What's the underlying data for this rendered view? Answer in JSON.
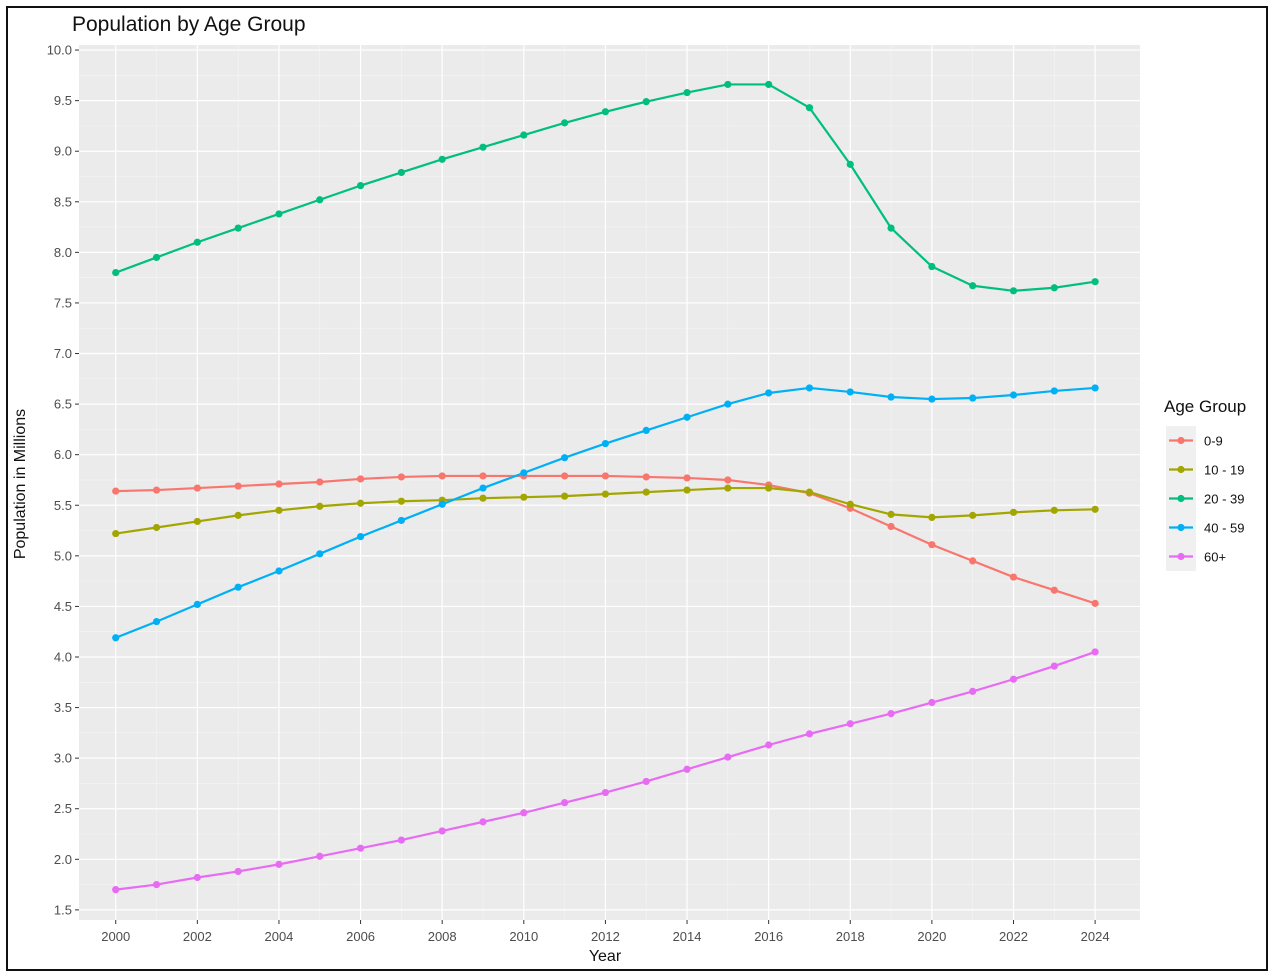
{
  "chart_data": {
    "type": "line",
    "title": "Population by Age Group",
    "xlabel": "Year",
    "ylabel": "Population in Millions",
    "xlim": [
      1999.1,
      2025.1
    ],
    "ylim": [
      1.4,
      10.05
    ],
    "x_ticks": [
      2000,
      2002,
      2004,
      2006,
      2008,
      2010,
      2012,
      2014,
      2016,
      2018,
      2020,
      2022,
      2024
    ],
    "y_ticks": [
      1.5,
      2.0,
      2.5,
      3.0,
      3.5,
      4.0,
      4.5,
      5.0,
      5.5,
      6.0,
      6.5,
      7.0,
      7.5,
      8.0,
      8.5,
      9.0,
      9.5,
      10.0
    ],
    "y_tick_labels": [
      "1.5",
      "2.0",
      "2.5",
      "3.0",
      "3.5",
      "4.0",
      "4.5",
      "5.0",
      "5.5",
      "6.0",
      "6.5",
      "7.0",
      "7.5",
      "8.0",
      "8.5",
      "9.0",
      "9.5",
      "10.0"
    ],
    "grid": true,
    "legend": {
      "title": "Age Group",
      "position": "right"
    },
    "x": [
      2000,
      2001,
      2002,
      2003,
      2004,
      2005,
      2006,
      2007,
      2008,
      2009,
      2010,
      2011,
      2012,
      2013,
      2014,
      2015,
      2016,
      2017,
      2018,
      2019,
      2020,
      2021,
      2022,
      2023,
      2024
    ],
    "series": [
      {
        "name": "0-9",
        "color": "#F8766D",
        "values": [
          5.64,
          5.65,
          5.67,
          5.69,
          5.71,
          5.73,
          5.76,
          5.78,
          5.79,
          5.79,
          5.79,
          5.79,
          5.79,
          5.78,
          5.77,
          5.75,
          5.7,
          5.62,
          5.47,
          5.29,
          5.11,
          4.95,
          4.79,
          4.66,
          4.53
        ]
      },
      {
        "name": "10 - 19",
        "color": "#A3A500",
        "values": [
          5.22,
          5.28,
          5.34,
          5.4,
          5.45,
          5.49,
          5.52,
          5.54,
          5.55,
          5.57,
          5.58,
          5.59,
          5.61,
          5.63,
          5.65,
          5.67,
          5.67,
          5.63,
          5.51,
          5.41,
          5.38,
          5.4,
          5.43,
          5.45,
          5.46
        ]
      },
      {
        "name": "20 - 39",
        "color": "#00BF7D",
        "values": [
          7.8,
          7.95,
          8.1,
          8.24,
          8.38,
          8.52,
          8.66,
          8.79,
          8.92,
          9.04,
          9.16,
          9.28,
          9.39,
          9.49,
          9.58,
          9.66,
          9.66,
          9.43,
          8.87,
          8.24,
          7.86,
          7.67,
          7.62,
          7.65,
          7.71
        ]
      },
      {
        "name": "40 - 59",
        "color": "#00B0F6",
        "values": [
          4.19,
          4.35,
          4.52,
          4.69,
          4.85,
          5.02,
          5.19,
          5.35,
          5.51,
          5.67,
          5.82,
          5.97,
          6.11,
          6.24,
          6.37,
          6.5,
          6.61,
          6.66,
          6.62,
          6.57,
          6.55,
          6.56,
          6.59,
          6.63,
          6.66
        ]
      },
      {
        "name": "60+",
        "color": "#E76BF3",
        "values": [
          1.7,
          1.75,
          1.82,
          1.88,
          1.95,
          2.03,
          2.11,
          2.19,
          2.28,
          2.37,
          2.46,
          2.56,
          2.66,
          2.77,
          2.89,
          3.01,
          3.13,
          3.24,
          3.34,
          3.44,
          3.55,
          3.66,
          3.78,
          3.91,
          4.05
        ]
      }
    ]
  },
  "style": {
    "panel_bg": "#EBEBEB",
    "grid_major": "#FFFFFF",
    "grid_minor": "#F5F5F5",
    "legend_key_bg": "#F0F0F0"
  }
}
